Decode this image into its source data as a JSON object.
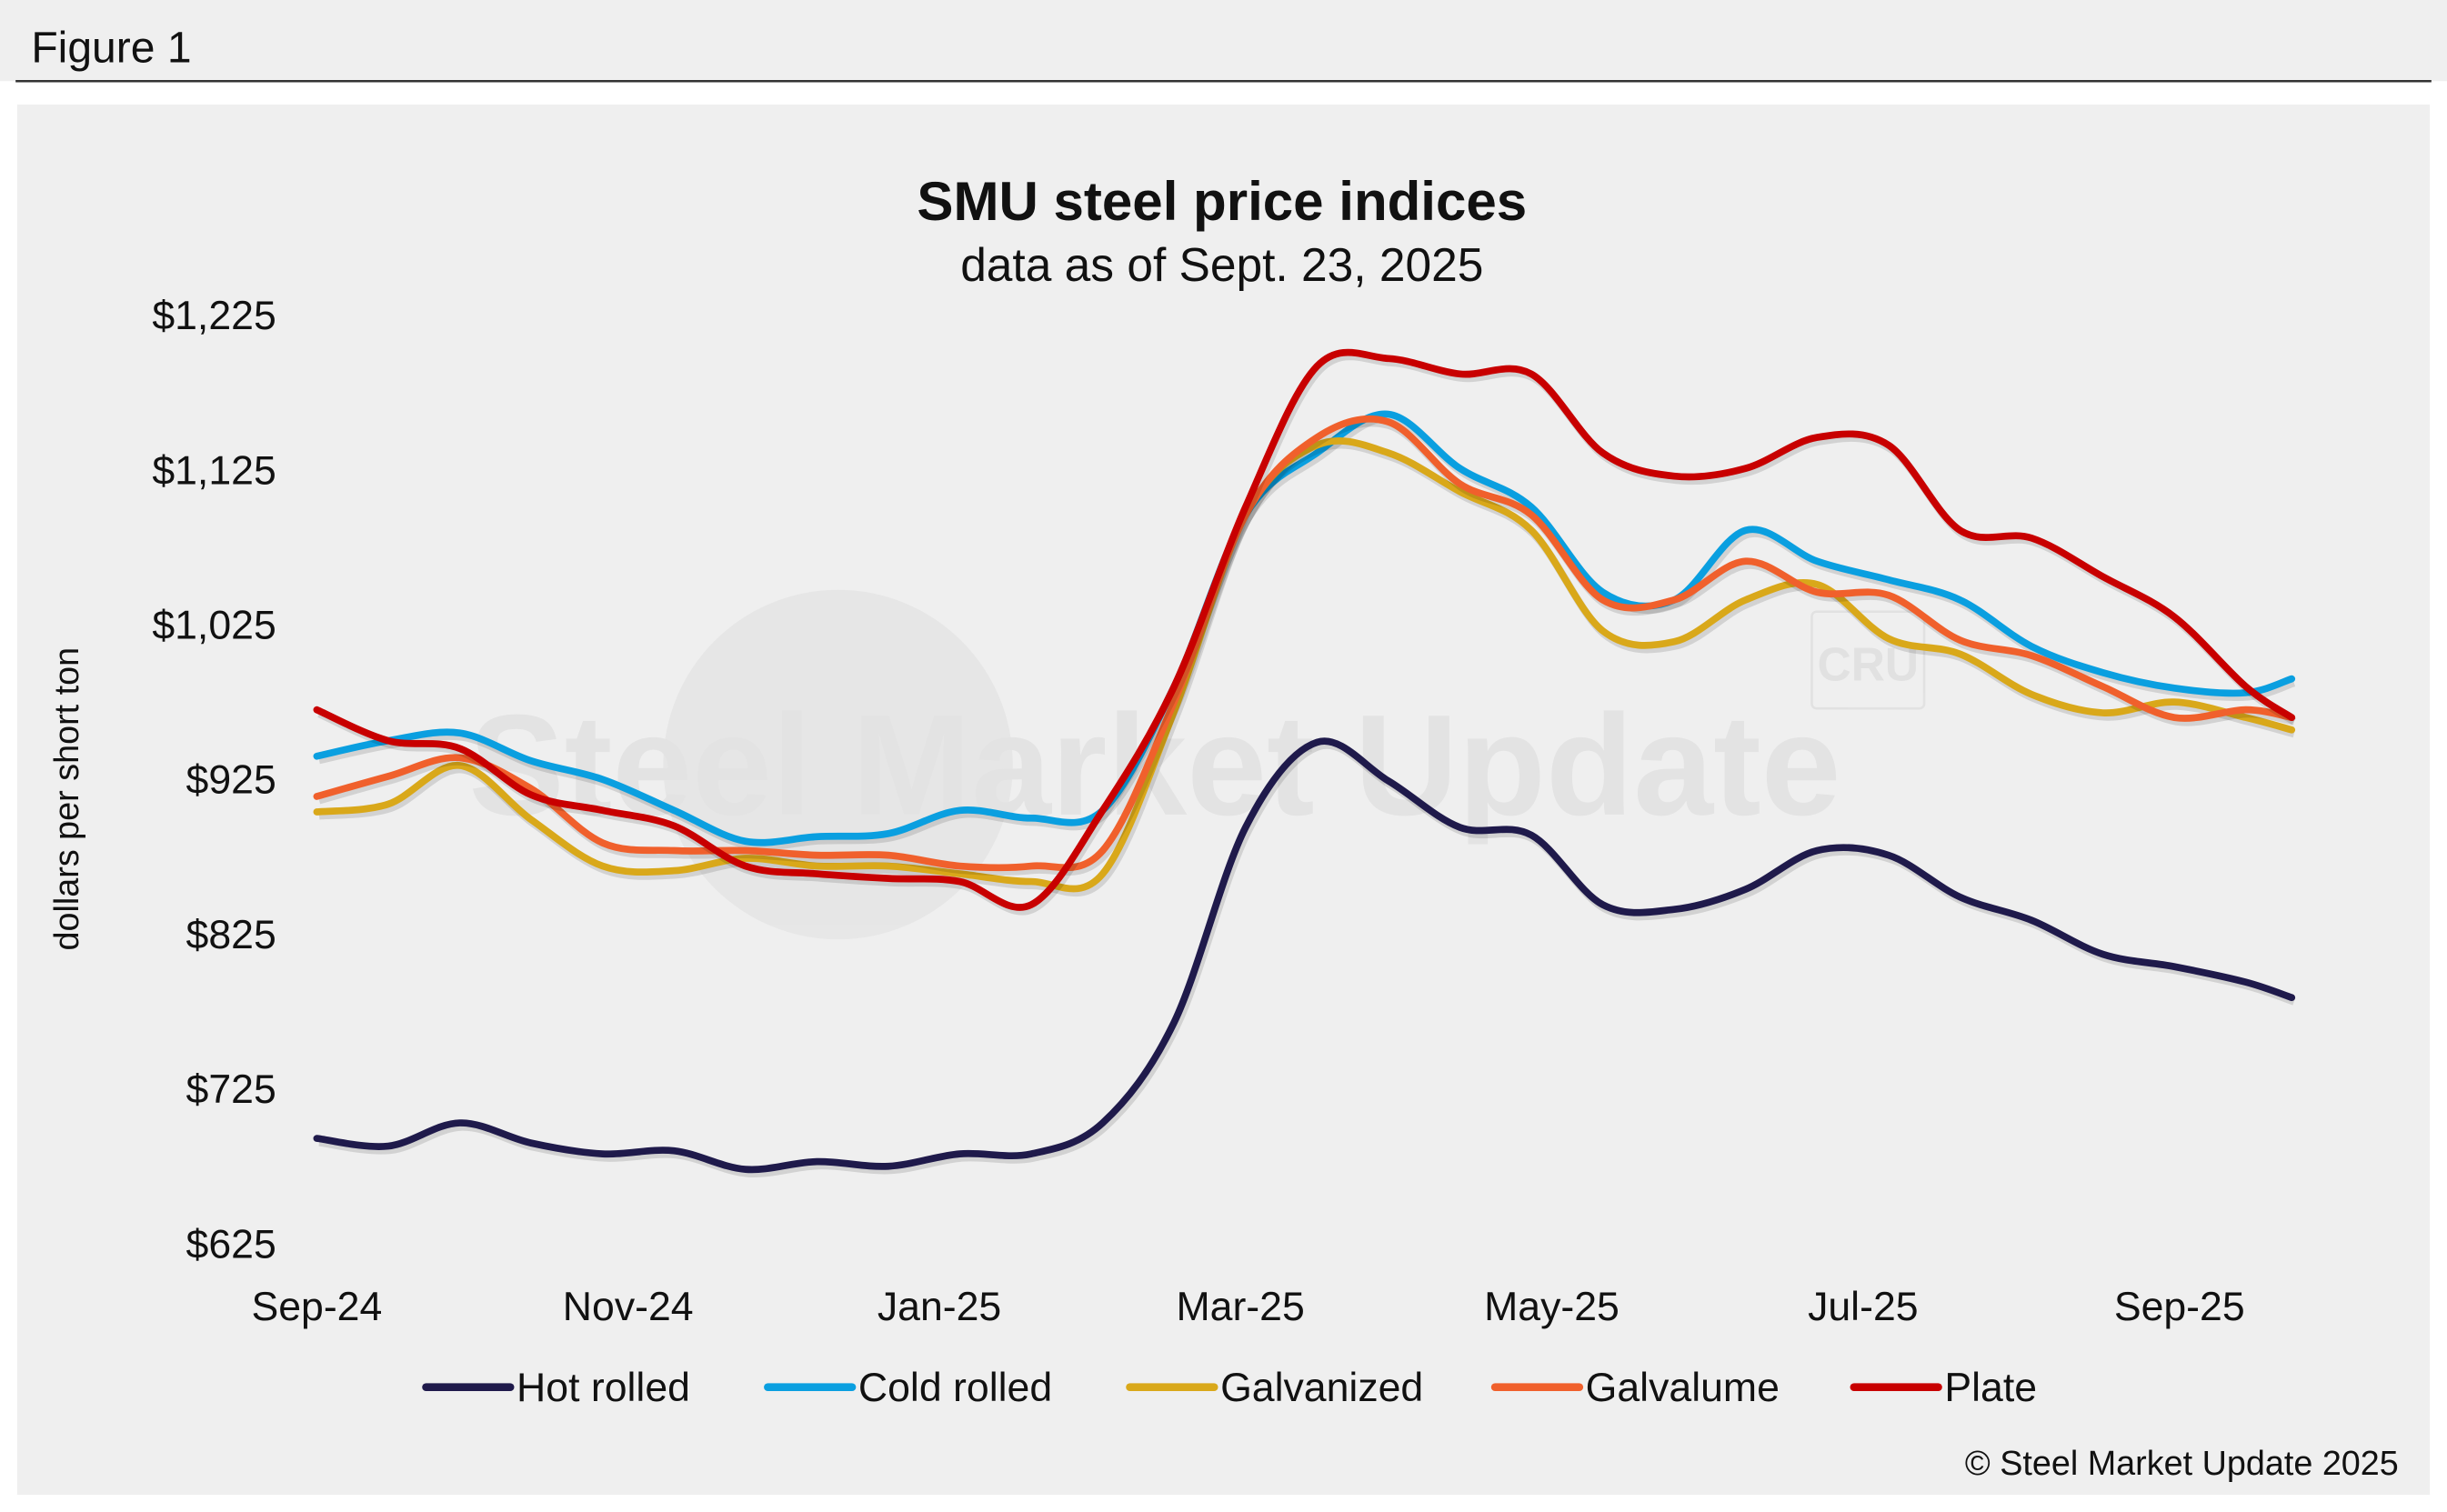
{
  "figure_label": "Figure 1",
  "watermark": "Steel Market Update",
  "watermark_badge": "CRU",
  "copyright": "© Steel Market Update 2025",
  "chart_data": {
    "type": "line",
    "title": "SMU steel price indices",
    "subtitle": "data as of Sept. 23, 2025",
    "ylabel": "dollars per short ton",
    "xlabel": "",
    "ylim": [
      625,
      1225
    ],
    "yticks": [
      625,
      725,
      825,
      925,
      1025,
      1125,
      1225
    ],
    "ytick_labels": [
      "$625",
      "$725",
      "$825",
      "$925",
      "$1,025",
      "$1,125",
      "$1,225"
    ],
    "xlim": [
      "2024-09-01",
      "2025-09-23"
    ],
    "xticks": [
      "2024-09-01",
      "2024-11-01",
      "2025-01-01",
      "2025-03-01",
      "2025-05-01",
      "2025-07-01",
      "2025-09-01"
    ],
    "xtick_labels": [
      "Sep-24",
      "Nov-24",
      "Jan-25",
      "Mar-25",
      "May-25",
      "Jul-25",
      "Sep-25"
    ],
    "grid": false,
    "legend_position": "bottom",
    "x": [
      "2024-09-01",
      "2024-09-15",
      "2024-09-29",
      "2024-10-13",
      "2024-10-27",
      "2024-11-10",
      "2024-11-24",
      "2024-12-08",
      "2024-12-22",
      "2025-01-05",
      "2025-01-19",
      "2025-02-02",
      "2025-02-16",
      "2025-03-02",
      "2025-03-16",
      "2025-03-30",
      "2025-04-13",
      "2025-04-27",
      "2025-05-11",
      "2025-05-25",
      "2025-06-08",
      "2025-06-22",
      "2025-07-06",
      "2025-07-20",
      "2025-08-03",
      "2025-08-17",
      "2025-08-31",
      "2025-09-14",
      "2025-09-23"
    ],
    "series": [
      {
        "name": "Hot rolled",
        "color": "#1f1a4b",
        "values": [
          693,
          688,
          703,
          690,
          683,
          685,
          673,
          678,
          675,
          683,
          683,
          703,
          768,
          894,
          949,
          924,
          894,
          889,
          844,
          841,
          854,
          879,
          876,
          849,
          834,
          812,
          804,
          794,
          784
        ]
      },
      {
        "name": "Cold rolled",
        "color": "#0a9fe0",
        "values": [
          940,
          950,
          955,
          937,
          925,
          905,
          885,
          888,
          890,
          905,
          900,
          905,
          985,
          1096,
          1136,
          1161,
          1126,
          1101,
          1046,
          1041,
          1086,
          1066,
          1054,
          1041,
          1011,
          994,
          984,
          981,
          990
        ]
      },
      {
        "name": "Galvanized",
        "color": "#d9a81a",
        "values": [
          904,
          909,
          934,
          899,
          869,
          866,
          874,
          869,
          869,
          864,
          859,
          864,
          969,
          1096,
          1141,
          1136,
          1111,
          1086,
          1021,
          1014,
          1041,
          1051,
          1016,
          1006,
          980,
          968,
          975,
          965,
          957
        ]
      },
      {
        "name": "Galvalume",
        "color": "#f0602c",
        "values": [
          914,
          927,
          939,
          919,
          884,
          879,
          879,
          876,
          876,
          869,
          869,
          879,
          975,
          1096,
          1146,
          1156,
          1116,
          1096,
          1041,
          1041,
          1066,
          1046,
          1044,
          1015,
          1005,
          985,
          965,
          970,
          965
        ]
      },
      {
        "name": "Plate",
        "color": "#c80000",
        "values": [
          970,
          950,
          945,
          915,
          905,
          895,
          869,
          864,
          861,
          859,
          844,
          905,
          985,
          1101,
          1192,
          1197,
          1187,
          1187,
          1136,
          1121,
          1126,
          1146,
          1141,
          1086,
          1081,
          1056,
          1030,
          985,
          965
        ]
      }
    ]
  }
}
